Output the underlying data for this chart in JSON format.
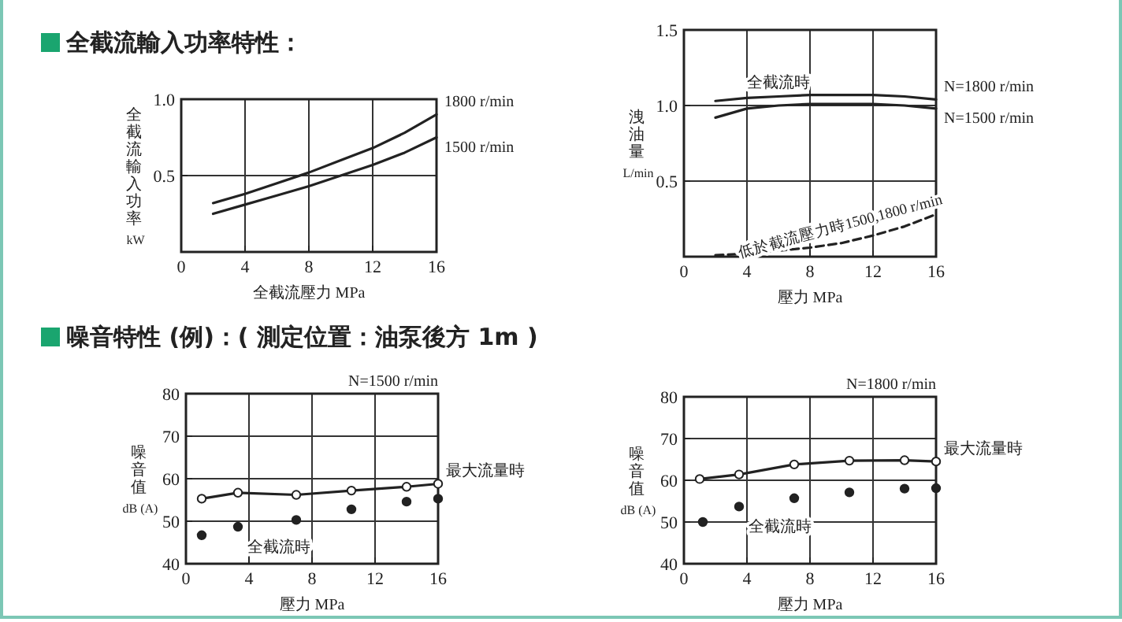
{
  "chart_data": [
    {
      "type": "line",
      "title": "全截流輸入功率特性：",
      "xlabel": "全截流壓力 MPa",
      "ylabel": "全截流輸入功率 kW",
      "xlim": [
        0,
        16
      ],
      "xticks": [
        0,
        4,
        8,
        12,
        16
      ],
      "ylim": [
        0,
        1
      ],
      "yticks": [
        {
          "value": 0,
          "label": null
        },
        {
          "value": 0.5,
          "label": "0.5"
        },
        {
          "value": 1,
          "label": "1.0"
        }
      ],
      "grid": true,
      "series": [
        {
          "name": "1800 r/min",
          "color": "#222222",
          "x": [
            2,
            4,
            6,
            8,
            10,
            12,
            14,
            16
          ],
          "values": [
            0.32,
            0.38,
            0.45,
            0.52,
            0.6,
            0.68,
            0.78,
            0.9
          ]
        },
        {
          "name": "1500 r/min",
          "color": "#222222",
          "x": [
            2,
            4,
            6,
            8,
            10,
            12,
            14,
            16
          ],
          "values": [
            0.25,
            0.31,
            0.37,
            0.43,
            0.5,
            0.57,
            0.65,
            0.75
          ]
        }
      ]
    },
    {
      "type": "line",
      "xlabel": "壓力 MPa",
      "ylabel": "洩油量 L/min",
      "xlim": [
        0,
        16
      ],
      "xticks": [
        0,
        4,
        8,
        12,
        16
      ],
      "ylim": [
        0,
        1.5
      ],
      "yticks": [
        {
          "value": 0,
          "label": null
        },
        {
          "value": 0.5,
          "label": "0.5"
        },
        {
          "value": 1,
          "label": "1.0"
        },
        {
          "value": 1.5,
          "label": "1.5"
        }
      ],
      "grid": true,
      "annotations": [
        {
          "text": "全截流時",
          "x": 6,
          "y": 1.12
        }
      ],
      "series": [
        {
          "name": "N=1800 r/min",
          "color": "#222222",
          "x": [
            2,
            4,
            6,
            8,
            10,
            12,
            14,
            16
          ],
          "values": [
            1.03,
            1.05,
            1.06,
            1.07,
            1.07,
            1.07,
            1.06,
            1.04
          ]
        },
        {
          "name": "N=1500 r/min",
          "color": "#222222",
          "x": [
            2,
            4,
            6,
            8,
            10,
            12,
            14,
            16
          ],
          "values": [
            0.92,
            0.98,
            1.0,
            1.01,
            1.01,
            1.01,
            1.0,
            0.98
          ]
        },
        {
          "name": "低於截流壓力時1500,1800 r/min",
          "color": "#222222",
          "line_style": "dashed",
          "x": [
            2,
            4,
            6,
            8,
            10,
            12,
            14,
            16
          ],
          "values": [
            0.01,
            0.02,
            0.04,
            0.06,
            0.09,
            0.14,
            0.2,
            0.28
          ]
        }
      ]
    },
    {
      "type": "line",
      "title": "噪音特性 (例)：( 測定位置：油泵後方 1m )",
      "xlabel": "壓力 MPa",
      "ylabel": "噪音值 dB (A)",
      "xlim": [
        0,
        16
      ],
      "xticks": [
        0,
        4,
        8,
        12,
        16
      ],
      "ylim": [
        40,
        80
      ],
      "yticks": [
        40,
        50,
        60,
        70,
        80
      ],
      "grid": true,
      "annotations": [
        "N=1500 r/min"
      ],
      "series": [
        {
          "name": "最大流量時",
          "color": "#222222",
          "marker": "circle",
          "x": [
            1,
            3.3,
            7,
            10.5,
            14,
            16
          ],
          "values": [
            55.3,
            56.7,
            56.2,
            57.2,
            58.1,
            58.8
          ]
        },
        {
          "name": "全截流時",
          "type": "scatter",
          "color": "#222222",
          "marker": "circle",
          "x": [
            1,
            3.3,
            7,
            10.5,
            14,
            16
          ],
          "values": [
            46.7,
            48.7,
            50.3,
            52.8,
            54.6,
            55.3
          ]
        }
      ]
    },
    {
      "type": "line",
      "xlabel": "壓力 MPa",
      "ylabel": "噪音值 dB (A)",
      "xlim": [
        0,
        16
      ],
      "xticks": [
        0,
        4,
        8,
        12,
        16
      ],
      "ylim": [
        40,
        80
      ],
      "yticks": [
        40,
        50,
        60,
        70,
        80
      ],
      "grid": true,
      "annotations": [
        "N=1800 r/min"
      ],
      "series": [
        {
          "name": "最大流量時",
          "color": "#222222",
          "marker": "circle",
          "x": [
            1,
            3.5,
            7,
            10.5,
            14,
            16
          ],
          "values": [
            60.3,
            61.4,
            63.8,
            64.7,
            64.8,
            64.5
          ]
        },
        {
          "name": "全截流時",
          "type": "scatter",
          "color": "#222222",
          "marker": "circle",
          "x": [
            1.2,
            3.5,
            7,
            10.5,
            14,
            16
          ],
          "values": [
            50,
            53.7,
            55.7,
            57.1,
            58,
            58.1
          ]
        }
      ]
    }
  ]
}
